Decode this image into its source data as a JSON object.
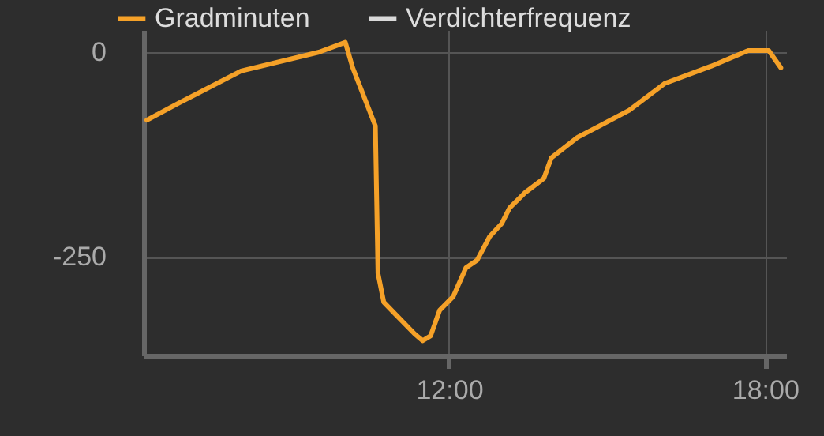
{
  "chart_data": {
    "type": "line",
    "x": [
      6.26,
      6.87,
      8.05,
      9.53,
      10.03,
      10.17,
      10.6,
      10.65,
      10.76,
      11.0,
      11.35,
      11.5,
      11.65,
      11.82,
      12.08,
      12.32,
      12.53,
      12.77,
      13.0,
      13.15,
      13.45,
      13.8,
      13.94,
      14.44,
      15.42,
      16.1,
      16.98,
      17.68,
      18.07,
      18.3
    ],
    "series": [
      {
        "name": "Gradminuten",
        "color": "#f5a128",
        "values": [
          -83,
          -62,
          -23,
          0,
          12,
          -19,
          -90,
          -270,
          -305,
          -321,
          -344,
          -352,
          -346,
          -315,
          -298,
          -263,
          -254,
          -225,
          -209,
          -190,
          -171,
          -154,
          -129,
          -104,
          -71,
          -38,
          -17,
          2,
          2,
          -19
        ]
      },
      {
        "name": "Verdichterfrequenz",
        "color": "#d9d9d9",
        "values": [
          null,
          null,
          null,
          null,
          null,
          null,
          null,
          null,
          null,
          null,
          null,
          null,
          null,
          null,
          null,
          null,
          null,
          null,
          null,
          null,
          null,
          null,
          null,
          null,
          null,
          null,
          null,
          null,
          null,
          null
        ]
      }
    ],
    "xlim": [
      6.2,
      18.4
    ],
    "xticks": [
      {
        "value": 12,
        "label": "12:00"
      },
      {
        "value": 18,
        "label": "18:00"
      }
    ],
    "ylim": [
      -370,
      27
    ],
    "yticks": [
      -250,
      0
    ],
    "grid": true,
    "legend": "top left"
  }
}
